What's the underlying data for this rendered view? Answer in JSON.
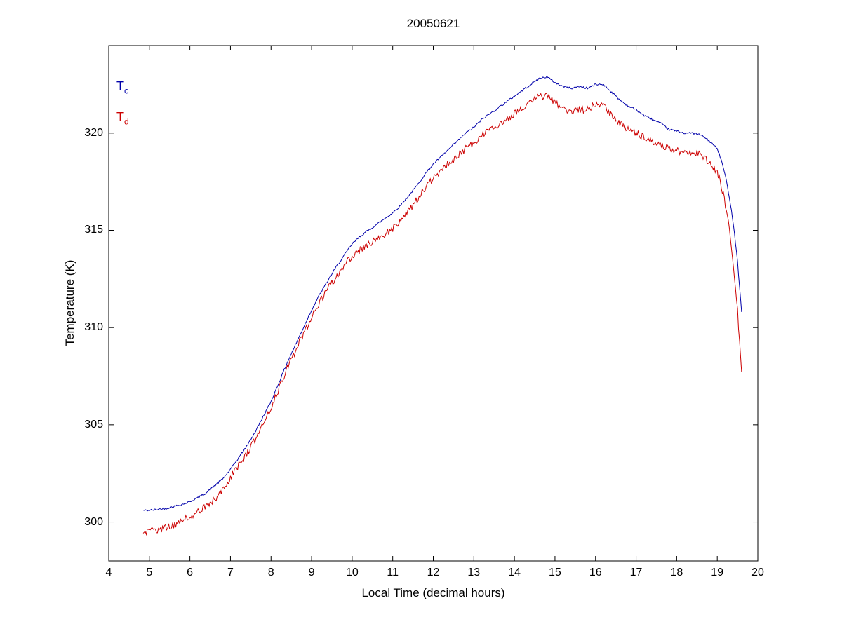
{
  "title": "20050621",
  "axes": {
    "xlabel": "Local Time (decimal hours)",
    "ylabel": "Temperature (K)"
  },
  "legend": [
    {
      "base": "T",
      "sub": "c",
      "color": "#0000aa"
    },
    {
      "base": "T",
      "sub": "d",
      "color": "#cc0000"
    }
  ],
  "chart_data": {
    "type": "line",
    "title": "20050621",
    "xlabel": "Local Time (decimal hours)",
    "ylabel": "Temperature (K)",
    "xlim": [
      4,
      20
    ],
    "ylim": [
      298,
      324.5
    ],
    "xticks": [
      4,
      5,
      6,
      7,
      8,
      9,
      10,
      11,
      12,
      13,
      14,
      15,
      16,
      17,
      18,
      19,
      20
    ],
    "yticks": [
      300,
      305,
      310,
      315,
      320
    ],
    "grid": false,
    "legend_position": "top-left-inside",
    "series": [
      {
        "name": "Tc",
        "color": "#0000aa",
        "noise": 0.05,
        "points": [
          [
            4.85,
            300.6
          ],
          [
            5.0,
            300.6
          ],
          [
            5.2,
            300.65
          ],
          [
            5.4,
            300.7
          ],
          [
            5.6,
            300.8
          ],
          [
            5.8,
            300.9
          ],
          [
            6.0,
            301.05
          ],
          [
            6.2,
            301.25
          ],
          [
            6.4,
            301.5
          ],
          [
            6.6,
            301.85
          ],
          [
            6.8,
            302.2
          ],
          [
            7.0,
            302.7
          ],
          [
            7.2,
            303.3
          ],
          [
            7.4,
            303.9
          ],
          [
            7.6,
            304.6
          ],
          [
            7.8,
            305.4
          ],
          [
            8.0,
            306.2
          ],
          [
            8.2,
            307.2
          ],
          [
            8.4,
            308.2
          ],
          [
            8.6,
            309.1
          ],
          [
            8.8,
            310.0
          ],
          [
            9.0,
            310.9
          ],
          [
            9.2,
            311.7
          ],
          [
            9.4,
            312.4
          ],
          [
            9.6,
            313.1
          ],
          [
            9.8,
            313.7
          ],
          [
            10.0,
            314.3
          ],
          [
            10.2,
            314.7
          ],
          [
            10.4,
            315.0
          ],
          [
            10.6,
            315.3
          ],
          [
            10.8,
            315.6
          ],
          [
            11.0,
            315.9
          ],
          [
            11.2,
            316.3
          ],
          [
            11.4,
            316.8
          ],
          [
            11.6,
            317.3
          ],
          [
            11.8,
            317.9
          ],
          [
            12.0,
            318.4
          ],
          [
            12.2,
            318.8
          ],
          [
            12.4,
            319.2
          ],
          [
            12.6,
            319.6
          ],
          [
            12.8,
            320.0
          ],
          [
            13.0,
            320.3
          ],
          [
            13.2,
            320.7
          ],
          [
            13.4,
            321.0
          ],
          [
            13.6,
            321.3
          ],
          [
            13.8,
            321.6
          ],
          [
            14.0,
            321.9
          ],
          [
            14.2,
            322.2
          ],
          [
            14.4,
            322.5
          ],
          [
            14.6,
            322.8
          ],
          [
            14.8,
            322.9
          ],
          [
            15.0,
            322.6
          ],
          [
            15.2,
            322.4
          ],
          [
            15.4,
            322.3
          ],
          [
            15.6,
            322.4
          ],
          [
            15.8,
            322.3
          ],
          [
            16.0,
            322.5
          ],
          [
            16.2,
            322.5
          ],
          [
            16.4,
            322.1
          ],
          [
            16.6,
            321.7
          ],
          [
            16.8,
            321.4
          ],
          [
            17.0,
            321.2
          ],
          [
            17.2,
            320.9
          ],
          [
            17.4,
            320.7
          ],
          [
            17.6,
            320.5
          ],
          [
            17.8,
            320.2
          ],
          [
            18.0,
            320.1
          ],
          [
            18.2,
            320.0
          ],
          [
            18.4,
            320.0
          ],
          [
            18.6,
            319.9
          ],
          [
            18.8,
            319.6
          ],
          [
            19.0,
            319.2
          ],
          [
            19.1,
            318.6
          ],
          [
            19.2,
            317.8
          ],
          [
            19.3,
            316.7
          ],
          [
            19.4,
            315.3
          ],
          [
            19.5,
            313.4
          ],
          [
            19.6,
            310.8
          ]
        ]
      },
      {
        "name": "Td",
        "color": "#cc0000",
        "noise": 0.18,
        "points": [
          [
            4.85,
            299.5
          ],
          [
            5.0,
            299.5
          ],
          [
            5.2,
            299.6
          ],
          [
            5.4,
            299.7
          ],
          [
            5.6,
            299.85
          ],
          [
            5.8,
            300.05
          ],
          [
            6.0,
            300.3
          ],
          [
            6.2,
            300.5
          ],
          [
            6.4,
            300.8
          ],
          [
            6.6,
            301.15
          ],
          [
            6.8,
            301.6
          ],
          [
            7.0,
            302.3
          ],
          [
            7.2,
            302.9
          ],
          [
            7.4,
            303.5
          ],
          [
            7.6,
            304.2
          ],
          [
            7.8,
            305.0
          ],
          [
            8.0,
            305.9
          ],
          [
            8.2,
            306.9
          ],
          [
            8.4,
            307.9
          ],
          [
            8.6,
            308.8
          ],
          [
            8.8,
            309.7
          ],
          [
            9.0,
            310.5
          ],
          [
            9.2,
            311.3
          ],
          [
            9.4,
            312.0
          ],
          [
            9.6,
            312.6
          ],
          [
            9.8,
            313.2
          ],
          [
            10.0,
            313.7
          ],
          [
            10.2,
            314.0
          ],
          [
            10.4,
            314.3
          ],
          [
            10.6,
            314.5
          ],
          [
            10.8,
            314.8
          ],
          [
            11.0,
            315.1
          ],
          [
            11.2,
            315.5
          ],
          [
            11.4,
            316.0
          ],
          [
            11.6,
            316.6
          ],
          [
            11.8,
            317.2
          ],
          [
            12.0,
            317.7
          ],
          [
            12.2,
            318.1
          ],
          [
            12.4,
            318.5
          ],
          [
            12.6,
            318.8
          ],
          [
            12.8,
            319.2
          ],
          [
            13.0,
            319.5
          ],
          [
            13.2,
            319.9
          ],
          [
            13.4,
            320.2
          ],
          [
            13.6,
            320.4
          ],
          [
            13.8,
            320.7
          ],
          [
            14.0,
            321.0
          ],
          [
            14.2,
            321.3
          ],
          [
            14.4,
            321.6
          ],
          [
            14.6,
            321.9
          ],
          [
            14.8,
            321.9
          ],
          [
            15.0,
            321.6
          ],
          [
            15.2,
            321.3
          ],
          [
            15.4,
            321.1
          ],
          [
            15.6,
            321.2
          ],
          [
            15.8,
            321.2
          ],
          [
            16.0,
            321.5
          ],
          [
            16.2,
            321.4
          ],
          [
            16.4,
            320.9
          ],
          [
            16.6,
            320.5
          ],
          [
            16.8,
            320.2
          ],
          [
            17.0,
            320.0
          ],
          [
            17.2,
            319.8
          ],
          [
            17.4,
            319.6
          ],
          [
            17.6,
            319.4
          ],
          [
            17.8,
            319.2
          ],
          [
            18.0,
            319.1
          ],
          [
            18.2,
            319.0
          ],
          [
            18.4,
            319.0
          ],
          [
            18.6,
            318.9
          ],
          [
            18.8,
            318.5
          ],
          [
            19.0,
            318.0
          ],
          [
            19.1,
            317.3
          ],
          [
            19.2,
            316.3
          ],
          [
            19.3,
            315.0
          ],
          [
            19.4,
            313.2
          ],
          [
            19.5,
            310.8
          ],
          [
            19.6,
            307.7
          ]
        ]
      }
    ]
  }
}
